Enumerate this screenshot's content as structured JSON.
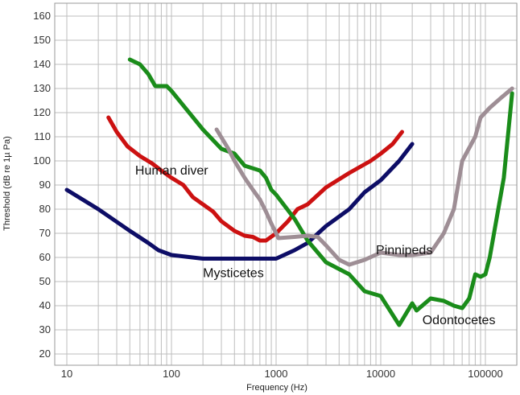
{
  "chart_data": {
    "type": "line",
    "xlabel": "Frequency (Hz)",
    "ylabel": "Threshold (dB re 1µ Pa)",
    "x_scale": "log",
    "xlim": [
      10,
      200000
    ],
    "ylim": [
      15,
      163
    ],
    "x_ticks": [
      10,
      100,
      1000,
      10000,
      100000
    ],
    "x_tick_labels": [
      "10",
      "100",
      "1000",
      "10000",
      "100000"
    ],
    "y_ticks": [
      20,
      30,
      40,
      50,
      60,
      70,
      80,
      90,
      100,
      110,
      120,
      130,
      140,
      150,
      160
    ],
    "y_tick_labels": [
      "20",
      "30",
      "40",
      "50",
      "60",
      "70",
      "80",
      "90",
      "100",
      "110",
      "120",
      "130",
      "140",
      "150",
      "160"
    ],
    "grid": true,
    "series": [
      {
        "name": "Human diver",
        "color": "#cc1111",
        "points": [
          [
            25,
            118
          ],
          [
            30,
            112
          ],
          [
            38,
            106
          ],
          [
            50,
            102
          ],
          [
            65,
            99
          ],
          [
            80,
            96
          ],
          [
            100,
            93
          ],
          [
            130,
            90
          ],
          [
            160,
            85
          ],
          [
            200,
            82
          ],
          [
            250,
            79
          ],
          [
            300,
            75
          ],
          [
            400,
            71
          ],
          [
            500,
            69
          ],
          [
            600,
            68.5
          ],
          [
            700,
            67
          ],
          [
            800,
            67
          ],
          [
            1000,
            70
          ],
          [
            1300,
            75
          ],
          [
            1600,
            80
          ],
          [
            2000,
            82
          ],
          [
            3000,
            89
          ],
          [
            5000,
            95
          ],
          [
            8000,
            100
          ],
          [
            10000,
            103
          ],
          [
            13000,
            107
          ],
          [
            16000,
            112
          ]
        ]
      },
      {
        "name": "Mysticetes",
        "color": "#0d0d66",
        "points": [
          [
            10,
            88
          ],
          [
            20,
            80
          ],
          [
            40,
            71
          ],
          [
            60,
            66
          ],
          [
            75,
            63
          ],
          [
            100,
            61
          ],
          [
            200,
            59.5
          ],
          [
            500,
            59.5
          ],
          [
            1000,
            59.5
          ],
          [
            1500,
            63
          ],
          [
            2000,
            66
          ],
          [
            3000,
            73
          ],
          [
            5000,
            80
          ],
          [
            7000,
            87
          ],
          [
            10000,
            92
          ],
          [
            15000,
            100
          ],
          [
            20000,
            107
          ]
        ]
      },
      {
        "name": "Odontocetes",
        "color": "#1a8c1a",
        "points": [
          [
            40,
            142
          ],
          [
            50,
            140
          ],
          [
            60,
            136
          ],
          [
            70,
            131
          ],
          [
            90,
            131
          ],
          [
            100,
            129
          ],
          [
            200,
            113
          ],
          [
            300,
            105
          ],
          [
            400,
            103
          ],
          [
            500,
            98
          ],
          [
            700,
            96
          ],
          [
            800,
            93
          ],
          [
            900,
            88
          ],
          [
            1000,
            86
          ],
          [
            1500,
            76
          ],
          [
            2000,
            67
          ],
          [
            3000,
            58
          ],
          [
            5000,
            53
          ],
          [
            7000,
            46
          ],
          [
            10000,
            44
          ],
          [
            15000,
            32
          ],
          [
            20000,
            41
          ],
          [
            22000,
            38
          ],
          [
            30000,
            43
          ],
          [
            40000,
            42
          ],
          [
            50000,
            40
          ],
          [
            60000,
            39
          ],
          [
            70000,
            43
          ],
          [
            80000,
            53
          ],
          [
            90000,
            52
          ],
          [
            100000,
            53
          ],
          [
            110000,
            60
          ],
          [
            150000,
            93
          ],
          [
            180000,
            128
          ]
        ]
      },
      {
        "name": "Pinnipeds",
        "color": "#9e8e95",
        "points": [
          [
            270,
            113
          ],
          [
            350,
            105
          ],
          [
            400,
            100
          ],
          [
            500,
            93
          ],
          [
            600,
            88
          ],
          [
            700,
            84
          ],
          [
            800,
            79
          ],
          [
            900,
            74
          ],
          [
            1000,
            70
          ],
          [
            1050,
            68
          ],
          [
            1500,
            68.5
          ],
          [
            2000,
            69
          ],
          [
            2500,
            68.5
          ],
          [
            3000,
            65
          ],
          [
            4000,
            59
          ],
          [
            5000,
            57
          ],
          [
            7000,
            59
          ],
          [
            10000,
            62
          ],
          [
            15000,
            61
          ],
          [
            20000,
            61
          ],
          [
            30000,
            62
          ],
          [
            40000,
            70
          ],
          [
            50000,
            80
          ],
          [
            60000,
            100
          ],
          [
            80000,
            110
          ],
          [
            90000,
            118
          ],
          [
            110000,
            122
          ],
          [
            140000,
            126
          ],
          [
            180000,
            130
          ]
        ]
      }
    ],
    "annotations": [
      {
        "text": "Human diver",
        "x": 45,
        "y": 96
      },
      {
        "text": "Mysticetes",
        "x": 200,
        "y": 53.5
      },
      {
        "text": "Odontocetes",
        "x": 25000,
        "y": 34
      },
      {
        "text": "Pinnipeds",
        "x": 9000,
        "y": 63
      }
    ]
  }
}
